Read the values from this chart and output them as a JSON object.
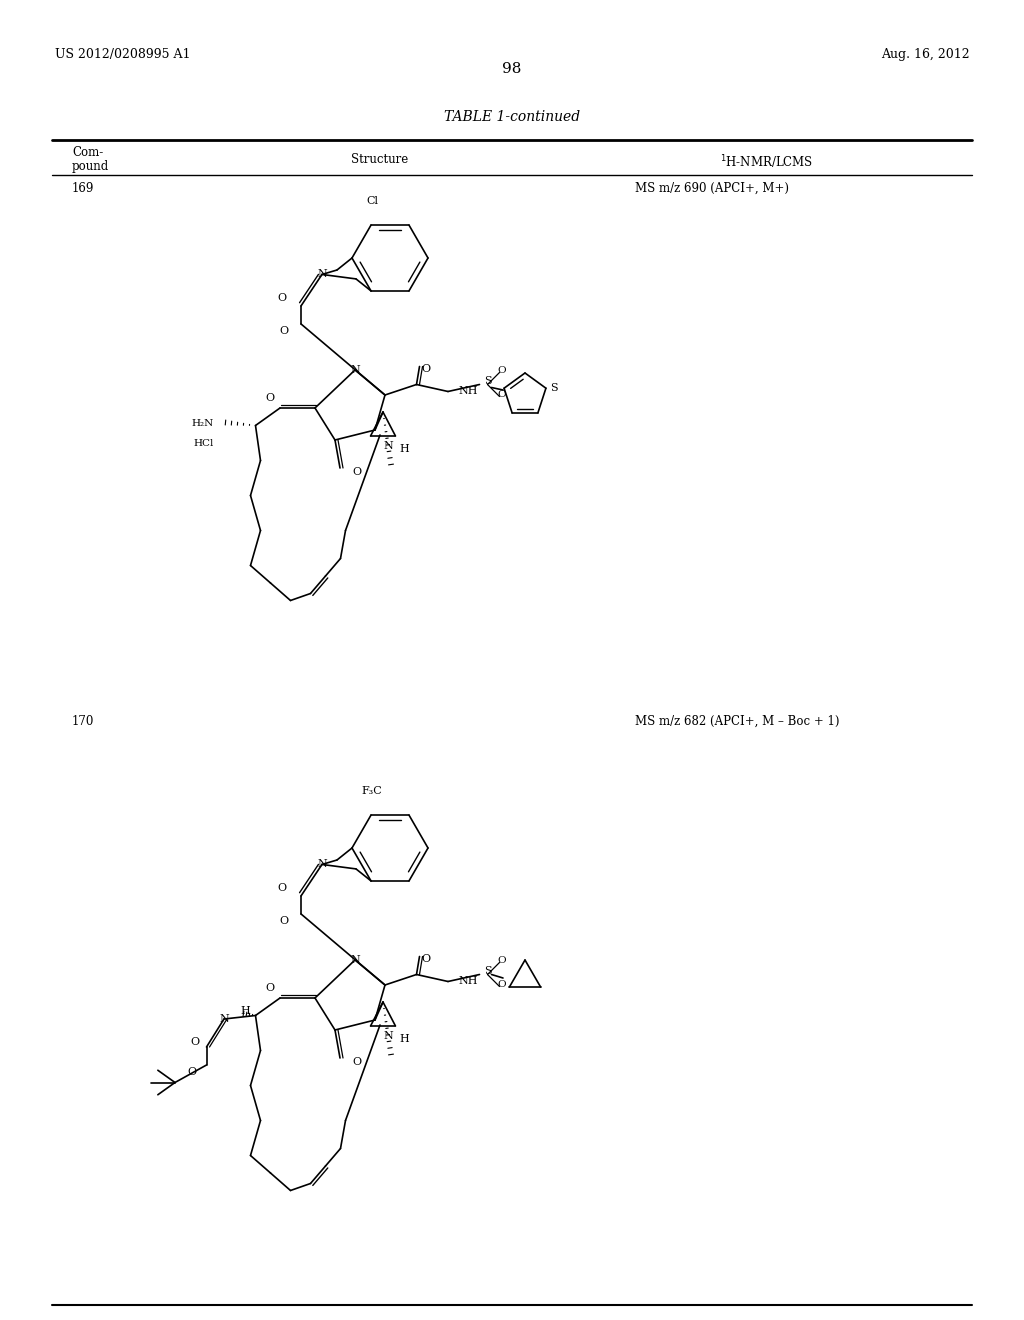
{
  "background_color": "#ffffff",
  "page_number": "98",
  "header_left": "US 2012/0208995 A1",
  "header_right": "Aug. 16, 2012",
  "table_title": "TABLE 1-continued",
  "font_size_header": 10,
  "font_size_body": 8.5,
  "font_size_page": 11,
  "font_size_patent": 9,
  "row169_compound": "169",
  "row169_nmr": "MS m/z 690 (APCI+, M+)",
  "row170_compound": "170",
  "row170_nmr": "MS m/z 682 (APCI+, M – Boc + 1)"
}
